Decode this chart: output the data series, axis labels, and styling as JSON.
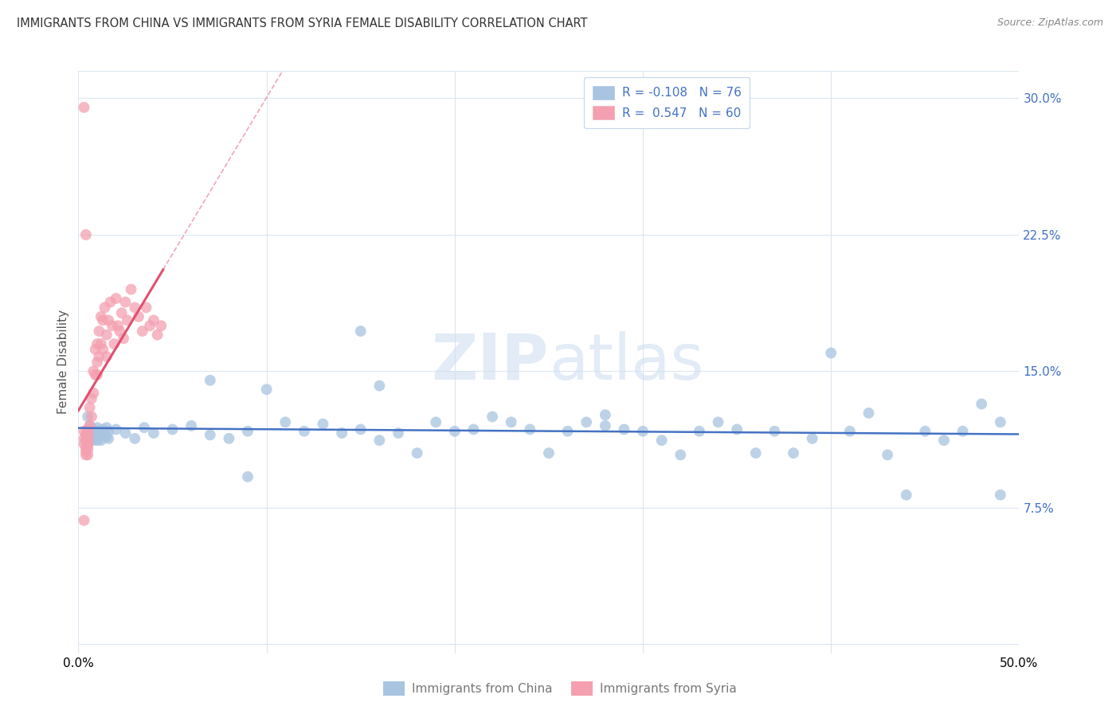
{
  "title": "IMMIGRANTS FROM CHINA VS IMMIGRANTS FROM SYRIA FEMALE DISABILITY CORRELATION CHART",
  "source": "Source: ZipAtlas.com",
  "ylabel": "Female Disability",
  "xlim": [
    0.0,
    0.5
  ],
  "ylim": [
    -0.005,
    0.315
  ],
  "china_color": "#a8c4e0",
  "syria_color": "#f4a0b0",
  "china_line_color": "#4472c4",
  "syria_line_color": "#e05070",
  "china_R": -0.108,
  "china_N": 76,
  "syria_R": 0.547,
  "syria_N": 60,
  "legend_label_china": "Immigrants from China",
  "legend_label_syria": "Immigrants from Syria",
  "background_color": "#ffffff",
  "grid_color": "#dce6f0",
  "watermark": "ZIPatlas",
  "ytick_vals": [
    0.075,
    0.15,
    0.225,
    0.3
  ],
  "ytick_labels": [
    "7.5%",
    "15.0%",
    "22.5%",
    "30.0%"
  ],
  "china_scatter_x": [
    0.005,
    0.006,
    0.007,
    0.008,
    0.008,
    0.009,
    0.009,
    0.01,
    0.01,
    0.01,
    0.011,
    0.011,
    0.012,
    0.012,
    0.013,
    0.014,
    0.015,
    0.015,
    0.016,
    0.016,
    0.02,
    0.025,
    0.03,
    0.035,
    0.04,
    0.05,
    0.06,
    0.07,
    0.08,
    0.09,
    0.1,
    0.11,
    0.12,
    0.13,
    0.14,
    0.15,
    0.16,
    0.17,
    0.18,
    0.19,
    0.2,
    0.21,
    0.22,
    0.23,
    0.24,
    0.25,
    0.26,
    0.27,
    0.28,
    0.29,
    0.3,
    0.31,
    0.32,
    0.33,
    0.34,
    0.35,
    0.36,
    0.37,
    0.38,
    0.39,
    0.4,
    0.41,
    0.42,
    0.43,
    0.44,
    0.45,
    0.46,
    0.47,
    0.48,
    0.49,
    0.07,
    0.09,
    0.15,
    0.16,
    0.28,
    0.49
  ],
  "china_scatter_y": [
    0.125,
    0.12,
    0.115,
    0.118,
    0.112,
    0.116,
    0.113,
    0.117,
    0.112,
    0.119,
    0.115,
    0.113,
    0.116,
    0.112,
    0.118,
    0.115,
    0.119,
    0.114,
    0.117,
    0.113,
    0.118,
    0.116,
    0.113,
    0.119,
    0.116,
    0.118,
    0.12,
    0.115,
    0.113,
    0.117,
    0.14,
    0.122,
    0.117,
    0.121,
    0.116,
    0.118,
    0.112,
    0.116,
    0.105,
    0.122,
    0.117,
    0.118,
    0.125,
    0.122,
    0.118,
    0.105,
    0.117,
    0.122,
    0.12,
    0.118,
    0.117,
    0.112,
    0.104,
    0.117,
    0.122,
    0.118,
    0.105,
    0.117,
    0.105,
    0.113,
    0.16,
    0.117,
    0.127,
    0.104,
    0.082,
    0.117,
    0.112,
    0.117,
    0.132,
    0.082,
    0.145,
    0.092,
    0.172,
    0.142,
    0.126,
    0.122
  ],
  "syria_scatter_x": [
    0.003,
    0.003,
    0.003,
    0.004,
    0.004,
    0.004,
    0.004,
    0.004,
    0.005,
    0.005,
    0.005,
    0.005,
    0.005,
    0.005,
    0.005,
    0.005,
    0.005,
    0.006,
    0.006,
    0.007,
    0.007,
    0.008,
    0.008,
    0.009,
    0.009,
    0.01,
    0.01,
    0.01,
    0.011,
    0.011,
    0.012,
    0.012,
    0.013,
    0.013,
    0.014,
    0.015,
    0.015,
    0.016,
    0.017,
    0.018,
    0.019,
    0.02,
    0.021,
    0.022,
    0.023,
    0.024,
    0.025,
    0.026,
    0.028,
    0.03,
    0.032,
    0.034,
    0.036,
    0.038,
    0.04,
    0.042,
    0.044,
    0.003,
    0.003,
    0.004
  ],
  "syria_scatter_y": [
    0.117,
    0.113,
    0.11,
    0.115,
    0.112,
    0.108,
    0.106,
    0.104,
    0.117,
    0.113,
    0.11,
    0.107,
    0.104,
    0.118,
    0.115,
    0.112,
    0.109,
    0.13,
    0.12,
    0.135,
    0.125,
    0.15,
    0.138,
    0.162,
    0.148,
    0.165,
    0.155,
    0.148,
    0.172,
    0.158,
    0.18,
    0.165,
    0.178,
    0.162,
    0.185,
    0.17,
    0.158,
    0.178,
    0.188,
    0.175,
    0.165,
    0.19,
    0.175,
    0.172,
    0.182,
    0.168,
    0.188,
    0.178,
    0.195,
    0.185,
    0.18,
    0.172,
    0.185,
    0.175,
    0.178,
    0.17,
    0.175,
    0.295,
    0.068,
    0.225
  ]
}
